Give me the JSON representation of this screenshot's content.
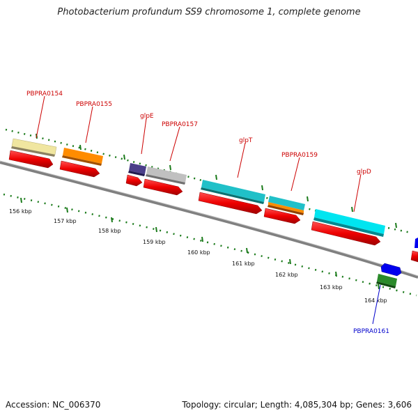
{
  "title": "Photobacterium profundum SS9 chromosome 1, complete genome",
  "footer": {
    "accession": "Accession: NC_006370",
    "summary": "Topology: circular; Length: 4,085,304 bp; Genes: 3,606"
  },
  "scale": {
    "labels": [
      "156 kbp",
      "157 kbp",
      "158 kbp",
      "159 kbp",
      "160 kbp",
      "161 kbp",
      "162 kbp",
      "163 kbp",
      "164 kbp"
    ]
  },
  "features": [
    {
      "label": "PBPRA0154",
      "color": "#f0e6a0",
      "label_color": "#cc0000"
    },
    {
      "label": "PBPRA0155",
      "color": "#ff8c00",
      "label_color": "#cc0000"
    },
    {
      "label": "glpE",
      "color": "#4b3f8a",
      "label_color": "#cc0000"
    },
    {
      "label": "PBPRA0157",
      "color": "#c0c0c0",
      "label_color": "#cc0000"
    },
    {
      "label": "glpT",
      "color": "#20c0c8",
      "label_color": "#cc0000"
    },
    {
      "label": "PBPRA0159",
      "color": "#20c0c8",
      "label_color": "#cc0000"
    },
    {
      "label": "glpD",
      "color": "#00e5f0",
      "label_color": "#cc0000"
    },
    {
      "label": "PBPRA0161",
      "color": "#2a8a2a",
      "label_color": "#0000cc"
    }
  ],
  "colors": {
    "backbone": "#808080",
    "cds": "#ee0000",
    "tick": "#1a7a1a",
    "extra_orange": "#ff8c00",
    "extra_blue": "#0000ee"
  }
}
